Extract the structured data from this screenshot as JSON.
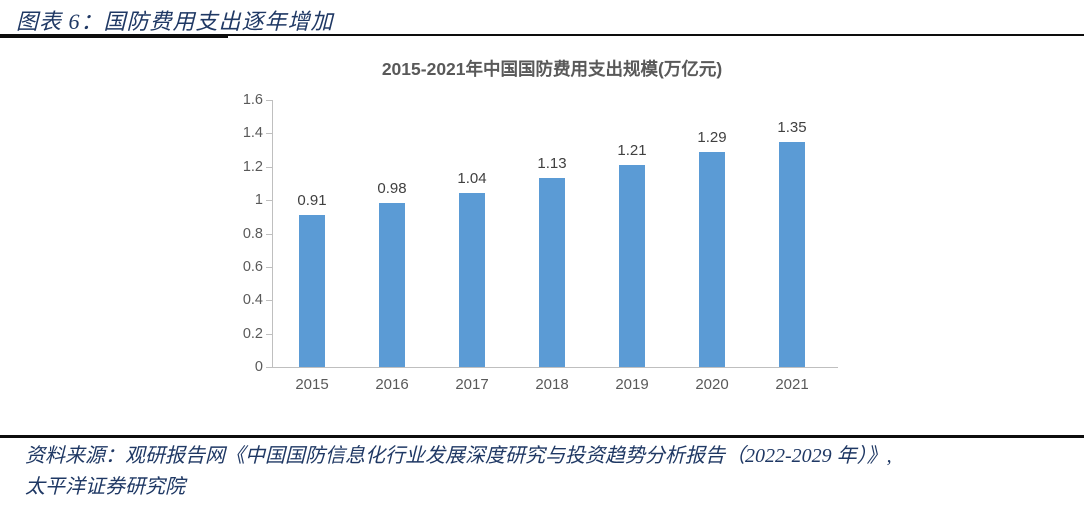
{
  "header": {
    "title": "图表 6：国防费用支出逐年增加"
  },
  "chart_data": {
    "type": "bar",
    "title": "2015-2021年中国国防费用支出规模(万亿元)",
    "categories": [
      "2015",
      "2016",
      "2017",
      "2018",
      "2019",
      "2020",
      "2021"
    ],
    "values": [
      0.91,
      0.98,
      1.04,
      1.13,
      1.21,
      1.29,
      1.35
    ],
    "data_labels": [
      "0.91",
      "0.98",
      "1.04",
      "1.13",
      "1.21",
      "1.29",
      "1.35"
    ],
    "xlabel": "",
    "ylabel": "",
    "ylim": [
      0,
      1.6
    ],
    "ytick_values": [
      0,
      0.2,
      0.4,
      0.6,
      0.8,
      1,
      1.2,
      1.4,
      1.6
    ],
    "ytick_labels": [
      "0",
      "0.2",
      "0.4",
      "0.6",
      "0.8",
      "1",
      "1.2",
      "1.4",
      "1.6"
    ],
    "bar_color": "#5b9bd5",
    "axis_color": "#bfbfbf",
    "grid": "off",
    "legend": "none"
  },
  "footer": {
    "source_line1": "资料来源：观研报告网《中国国防信息化行业发展深度研究与投资趋势分析报告（2022-2029 年）》,",
    "source_line2": "太平洋证券研究院"
  }
}
